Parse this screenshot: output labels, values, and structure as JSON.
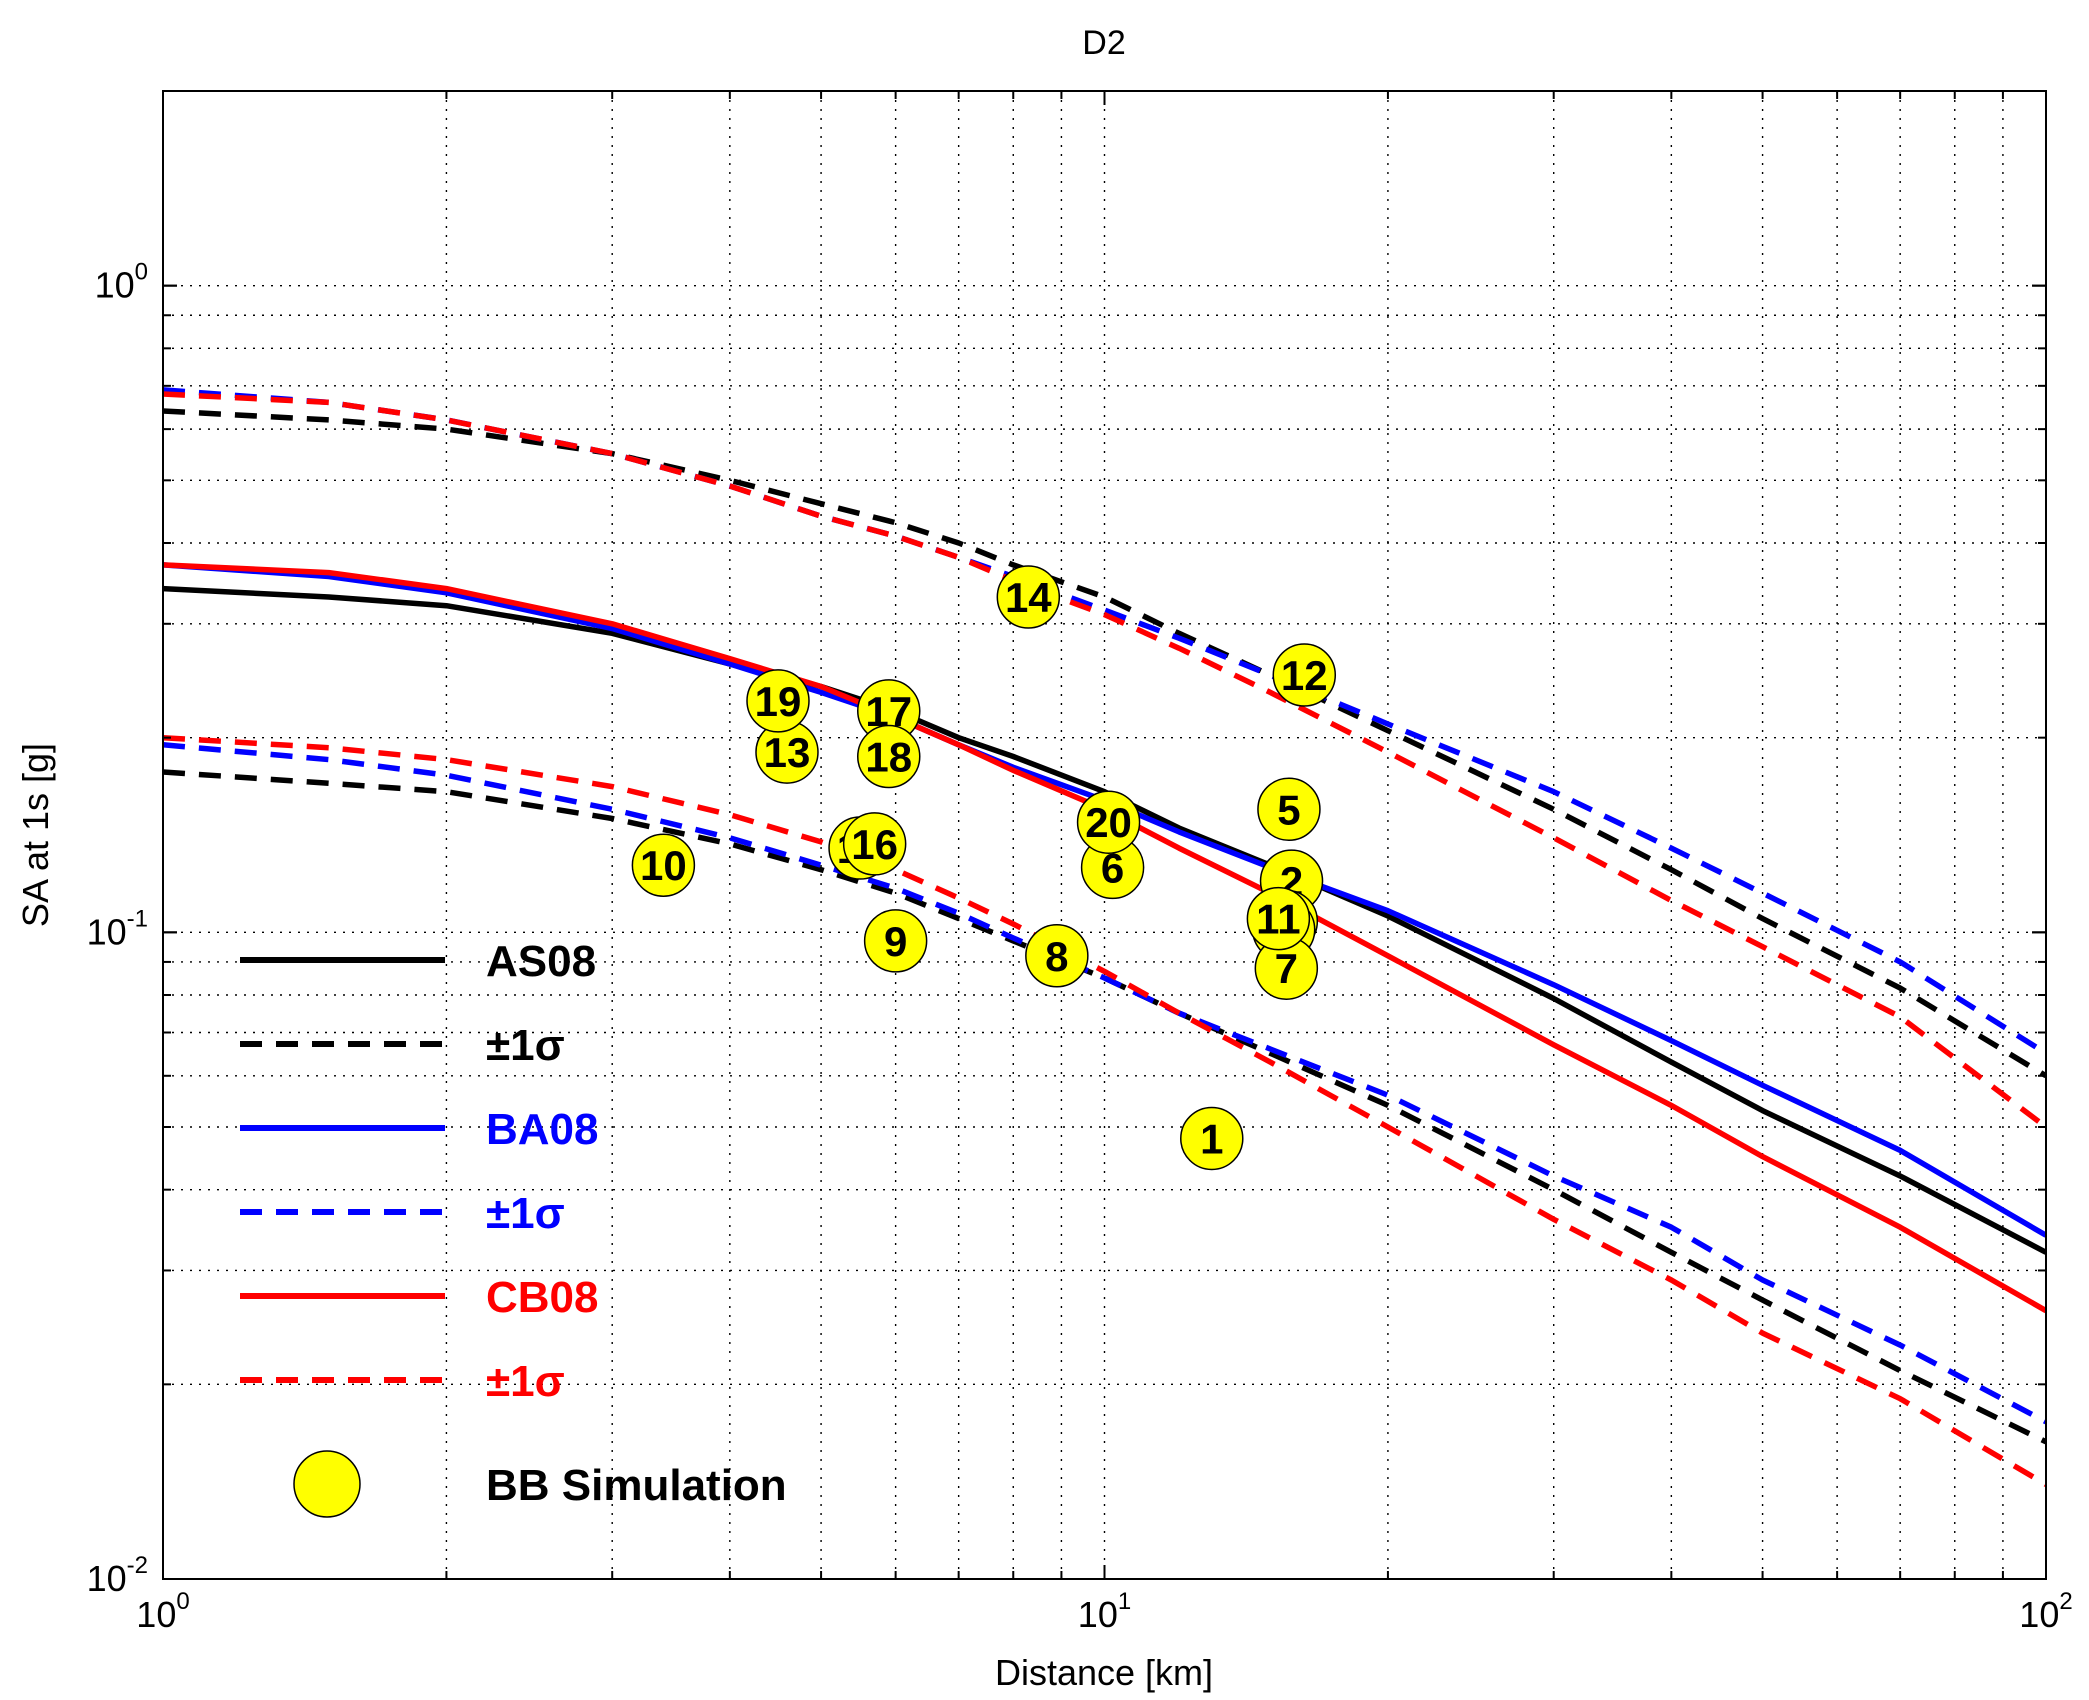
{
  "chart_data": {
    "type": "line",
    "title": "D2",
    "xlabel": "Distance [km]",
    "ylabel": "SA at 1s  [g]",
    "xscale": "log",
    "yscale": "log",
    "xlim": [
      1,
      100
    ],
    "ylim": [
      0.01,
      2
    ],
    "grid": true,
    "x_tick_labels": [
      {
        "base": "10",
        "exp": "0"
      },
      {
        "base": "10",
        "exp": "1"
      },
      {
        "base": "10",
        "exp": "2"
      }
    ],
    "y_tick_labels": [
      {
        "base": "10",
        "exp": "-2"
      },
      {
        "base": "10",
        "exp": "-1"
      },
      {
        "base": "10",
        "exp": "0"
      }
    ],
    "legend_position": "bottom-left",
    "series": [
      {
        "name": "AS08",
        "legend": "AS08",
        "color": "#000000",
        "style": "solid",
        "x": [
          1,
          1.5,
          2,
          3,
          4,
          5,
          6,
          7,
          8,
          10,
          12,
          15,
          20,
          30,
          40,
          50,
          70,
          100
        ],
        "y": [
          0.34,
          0.33,
          0.32,
          0.29,
          0.26,
          0.24,
          0.22,
          0.2,
          0.187,
          0.165,
          0.145,
          0.127,
          0.106,
          0.079,
          0.063,
          0.053,
          0.042,
          0.032
        ]
      },
      {
        "name": "AS08 +1σ",
        "legend": "±1σ",
        "color": "#000000",
        "style": "dashed",
        "x": [
          1,
          1.5,
          2,
          3,
          4,
          5,
          6,
          7,
          8,
          10,
          12,
          15,
          20,
          30,
          40,
          50,
          70,
          100
        ],
        "y": [
          0.64,
          0.62,
          0.6,
          0.55,
          0.5,
          0.46,
          0.43,
          0.4,
          0.37,
          0.33,
          0.29,
          0.25,
          0.205,
          0.155,
          0.125,
          0.105,
          0.082,
          0.06
        ]
      },
      {
        "name": "AS08 -1σ",
        "x": [
          1,
          1.5,
          2,
          3,
          4,
          5,
          6,
          7,
          8,
          10,
          12,
          15,
          20,
          30,
          40,
          50,
          70,
          100
        ],
        "y": [
          0.177,
          0.17,
          0.165,
          0.15,
          0.137,
          0.125,
          0.115,
          0.105,
          0.097,
          0.085,
          0.075,
          0.065,
          0.054,
          0.04,
          0.032,
          0.027,
          0.021,
          0.0163
        ]
      },
      {
        "name": "BA08",
        "legend": "BA08",
        "color": "#0000ff",
        "style": "solid",
        "x": [
          1,
          1.5,
          2,
          3,
          4,
          5,
          6,
          7,
          8,
          10,
          12,
          15,
          20,
          30,
          40,
          50,
          70,
          100
        ],
        "y": [
          0.37,
          0.355,
          0.335,
          0.295,
          0.26,
          0.235,
          0.215,
          0.195,
          0.18,
          0.16,
          0.143,
          0.126,
          0.108,
          0.083,
          0.068,
          0.058,
          0.046,
          0.034
        ]
      },
      {
        "name": "BA08 +1σ",
        "legend": "±1σ",
        "color": "#0000ff",
        "style": "dashed",
        "x": [
          1,
          1.5,
          2,
          3,
          4,
          5,
          6,
          7,
          8,
          10,
          12,
          15,
          20,
          30,
          40,
          50,
          70,
          100
        ],
        "y": [
          0.69,
          0.66,
          0.62,
          0.55,
          0.49,
          0.44,
          0.41,
          0.38,
          0.355,
          0.315,
          0.285,
          0.25,
          0.21,
          0.165,
          0.135,
          0.115,
          0.09,
          0.065
        ]
      },
      {
        "name": "BA08 -1σ",
        "x": [
          1,
          1.5,
          2,
          3,
          4,
          5,
          6,
          7,
          8,
          10,
          12,
          15,
          20,
          30,
          40,
          50,
          70,
          100
        ],
        "y": [
          0.195,
          0.185,
          0.175,
          0.155,
          0.14,
          0.127,
          0.117,
          0.107,
          0.098,
          0.085,
          0.075,
          0.066,
          0.056,
          0.042,
          0.035,
          0.029,
          0.023,
          0.0175
        ]
      },
      {
        "name": "CB08",
        "legend": "CB08",
        "color": "#ff0000",
        "style": "solid",
        "x": [
          1,
          1.5,
          2,
          3,
          4,
          5,
          6,
          7,
          8,
          10,
          12,
          15,
          20,
          30,
          40,
          50,
          70,
          100
        ],
        "y": [
          0.37,
          0.36,
          0.34,
          0.3,
          0.265,
          0.24,
          0.215,
          0.195,
          0.178,
          0.155,
          0.135,
          0.115,
          0.092,
          0.067,
          0.054,
          0.045,
          0.035,
          0.026
        ]
      },
      {
        "name": "CB08 +1σ",
        "legend": "±1σ",
        "color": "#ff0000",
        "style": "dashed",
        "x": [
          1,
          1.5,
          2,
          3,
          4,
          5,
          6,
          7,
          8,
          10,
          12,
          15,
          20,
          30,
          40,
          50,
          70,
          100
        ],
        "y": [
          0.68,
          0.66,
          0.62,
          0.55,
          0.49,
          0.44,
          0.41,
          0.38,
          0.35,
          0.31,
          0.275,
          0.235,
          0.19,
          0.14,
          0.112,
          0.095,
          0.074,
          0.05
        ]
      },
      {
        "name": "CB08 -1σ",
        "x": [
          1,
          1.5,
          2,
          3,
          4,
          5,
          6,
          7,
          8,
          10,
          12,
          15,
          20,
          30,
          40,
          50,
          70,
          100
        ],
        "y": [
          0.2,
          0.193,
          0.185,
          0.168,
          0.152,
          0.138,
          0.125,
          0.113,
          0.103,
          0.087,
          0.075,
          0.063,
          0.05,
          0.036,
          0.029,
          0.024,
          0.019,
          0.014
        ]
      }
    ],
    "scatter": {
      "name": "BB Simulation",
      "legend": "BB Simulation",
      "color": "#ffff00",
      "points": [
        {
          "label": "1",
          "x": 13.0,
          "y": 0.048
        },
        {
          "label": "2",
          "x": 15.8,
          "y": 0.12
        },
        {
          "label": "3",
          "x": 15.6,
          "y": 0.104
        },
        {
          "label": "4",
          "x": 15.5,
          "y": 0.101
        },
        {
          "label": "5",
          "x": 15.7,
          "y": 0.155
        },
        {
          "label": "6",
          "x": 10.2,
          "y": 0.126
        },
        {
          "label": "7",
          "x": 15.6,
          "y": 0.088
        },
        {
          "label": "8",
          "x": 8.9,
          "y": 0.092
        },
        {
          "label": "9",
          "x": 6.0,
          "y": 0.097
        },
        {
          "label": "10",
          "x": 3.4,
          "y": 0.127
        },
        {
          "label": "11",
          "x": 15.3,
          "y": 0.105
        },
        {
          "label": "12",
          "x": 16.3,
          "y": 0.25
        },
        {
          "label": "13",
          "x": 4.6,
          "y": 0.19
        },
        {
          "label": "14",
          "x": 8.3,
          "y": 0.33
        },
        {
          "label": "15",
          "x": 5.5,
          "y": 0.135
        },
        {
          "label": "16",
          "x": 5.7,
          "y": 0.137
        },
        {
          "label": "17",
          "x": 5.9,
          "y": 0.22
        },
        {
          "label": "18",
          "x": 5.9,
          "y": 0.187
        },
        {
          "label": "19",
          "x": 4.5,
          "y": 0.228
        },
        {
          "label": "20",
          "x": 10.1,
          "y": 0.148
        }
      ]
    }
  }
}
